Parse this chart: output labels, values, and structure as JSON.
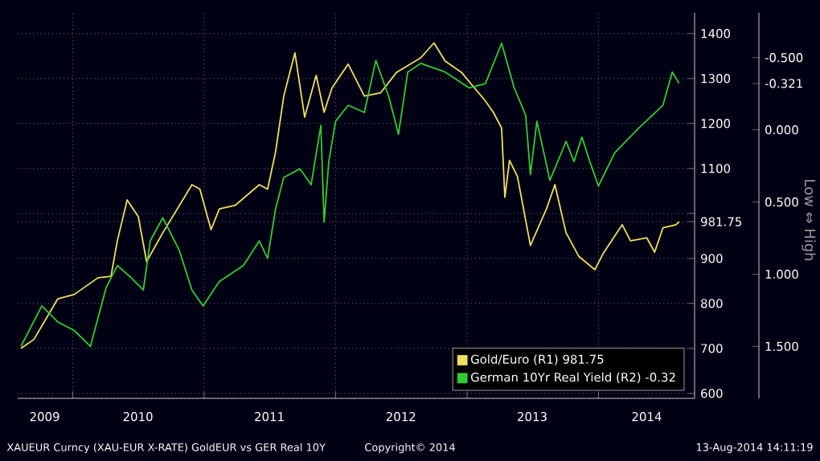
{
  "chart_data": {
    "type": "line",
    "xlim": [
      "2009-08-01",
      "2014-09-25"
    ],
    "xticks": [
      {
        "value": "2009-10-15",
        "label": "2009"
      },
      {
        "value": "2010-01-01",
        "label": null
      },
      {
        "value": "2010-07-01",
        "label": "2010"
      },
      {
        "value": "2011-01-01",
        "label": null
      },
      {
        "value": "2011-07-01",
        "label": "2011"
      },
      {
        "value": "2012-01-01",
        "label": null
      },
      {
        "value": "2012-07-01",
        "label": "2012"
      },
      {
        "value": "2013-01-01",
        "label": null
      },
      {
        "value": "2013-07-01",
        "label": "2013"
      },
      {
        "value": "2014-01-01",
        "label": null
      },
      {
        "value": "2014-05-15",
        "label": "2014"
      }
    ],
    "ylim": [
      589,
      1446
    ],
    "yticks": [
      600,
      700,
      800,
      900,
      {
        "value": 1000,
        "label": null
      },
      1100,
      1200,
      1300,
      1400,
      981.75
    ],
    "y2lim": [
      1.86,
      -0.81
    ],
    "y2ticks": [
      {
        "value": -0.5,
        "label": "-0.500"
      },
      {
        "value": 0,
        "label": "0.000"
      },
      {
        "value": 0.5,
        "label": "0.500"
      },
      {
        "value": 1,
        "label": "1.000"
      },
      {
        "value": 1.5,
        "label": "1.500"
      },
      {
        "value": -0.321,
        "label": "-0.321"
      }
    ],
    "y2label": "Low ⇔ High",
    "grid": true,
    "legend": "bottom right",
    "series": [
      {
        "name": "Gold/Euro (R1) 981.75",
        "color": "#f0e060",
        "x": [
          "2009-08-10",
          "2009-09-15",
          "2009-11-20",
          "2010-01-05",
          "2010-03-12",
          "2010-04-17",
          "2010-05-05",
          "2010-06-01",
          "2010-07-02",
          "2010-07-25",
          "2010-09-08",
          "2010-11-28",
          "2010-12-20",
          "2011-01-20",
          "2011-02-12",
          "2011-03-28",
          "2011-06-03",
          "2011-06-26",
          "2011-07-18",
          "2011-08-10",
          "2011-09-10",
          "2011-10-07",
          "2011-11-08",
          "2011-11-30",
          "2011-12-22",
          "2012-02-05",
          "2012-03-21",
          "2012-05-05",
          "2012-06-19",
          "2012-08-25",
          "2012-10-01",
          "2012-11-01",
          "2012-12-16",
          "2013-02-21",
          "2013-03-15",
          "2013-04-07",
          "2013-04-16",
          "2013-04-29",
          "2013-05-21",
          "2013-06-26",
          "2013-08-10",
          "2013-09-02",
          "2013-10-03",
          "2013-11-08",
          "2013-12-22",
          "2014-01-14",
          "2014-03-08",
          "2014-03-31",
          "2014-05-15",
          "2014-06-06",
          "2014-06-29",
          "2014-08-04",
          "2014-08-13"
        ],
        "values": [
          700,
          720,
          810,
          820,
          857,
          860,
          940,
          1030,
          993,
          893,
          957,
          1064,
          1054,
          964,
          1010,
          1018,
          1064,
          1054,
          1136,
          1261,
          1357,
          1214,
          1307,
          1225,
          1279,
          1332,
          1261,
          1268,
          1314,
          1346,
          1379,
          1339,
          1314,
          1250,
          1225,
          1190,
          1036,
          1118,
          1082,
          929,
          1011,
          1064,
          957,
          904,
          875,
          911,
          975,
          939,
          946,
          914,
          968,
          975,
          981.75
        ]
      },
      {
        "name": "German 10Yr Real Yield (R2) -0.32",
        "color": "#33cc33",
        "axis": "y2",
        "x": [
          "2009-08-10",
          "2009-10-07",
          "2009-11-20",
          "2010-01-05",
          "2010-02-19",
          "2010-04-04",
          "2010-05-05",
          "2010-06-10",
          "2010-07-16",
          "2010-08-04",
          "2010-09-08",
          "2010-10-23",
          "2010-11-28",
          "2010-12-29",
          "2011-02-12",
          "2011-04-20",
          "2011-06-03",
          "2011-06-26",
          "2011-07-18",
          "2011-08-10",
          "2011-09-24",
          "2011-10-25",
          "2011-11-21",
          "2011-11-30",
          "2011-12-13",
          "2012-01-01",
          "2012-02-05",
          "2012-03-21",
          "2012-04-22",
          "2012-05-28",
          "2012-06-24",
          "2012-07-20",
          "2012-08-25",
          "2012-11-01",
          "2013-01-07",
          "2013-02-21",
          "2013-04-07",
          "2013-05-12",
          "2013-06-13",
          "2013-06-26",
          "2013-07-14",
          "2013-08-19",
          "2013-09-10",
          "2013-10-03",
          "2013-10-25",
          "2013-11-16",
          "2013-12-08",
          "2014-01-01",
          "2014-02-15",
          "2014-04-22",
          "2014-06-29",
          "2014-07-25",
          "2014-08-13"
        ],
        "values": [
          1.5,
          1.22,
          1.33,
          1.39,
          1.5,
          1.09,
          0.94,
          1.02,
          1.11,
          0.77,
          0.61,
          0.83,
          1.11,
          1.22,
          1.05,
          0.94,
          0.77,
          0.89,
          0.55,
          0.33,
          0.27,
          0.38,
          -0.03,
          0.64,
          0.22,
          -0.06,
          -0.17,
          -0.12,
          -0.48,
          -0.23,
          0.03,
          -0.4,
          -0.46,
          -0.4,
          -0.29,
          -0.32,
          -0.6,
          -0.29,
          -0.1,
          0.31,
          -0.06,
          0.35,
          0.22,
          0.08,
          0.22,
          0.05,
          0.22,
          0.39,
          0.16,
          -0.01,
          -0.17,
          -0.4,
          -0.321
        ]
      }
    ],
    "annotations": [
      "XAUEUR Curncy (XAU-EUR X-RATE) GoldEUR vs GER Real 10Y",
      "Copyright© 2014",
      "13-Aug-2014 14:11:19"
    ]
  }
}
